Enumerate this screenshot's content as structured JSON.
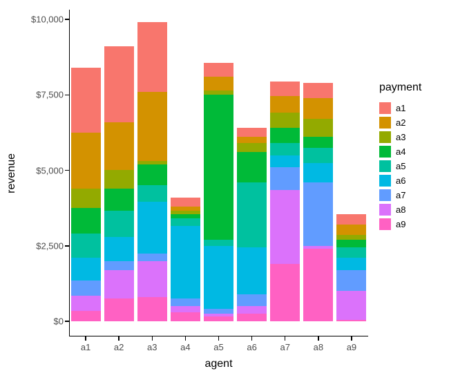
{
  "chart_data": {
    "type": "bar",
    "stacked": true,
    "title": "",
    "xlabel": "agent",
    "ylabel": "revenue",
    "legend_title": "payment",
    "legend_position": "right",
    "grid": false,
    "ylim": [
      0,
      10000
    ],
    "categories": [
      "a1",
      "a2",
      "a3",
      "a4",
      "a5",
      "a6",
      "a7",
      "a8",
      "a9"
    ],
    "y_ticks": [
      "$0",
      "$2,500",
      "$5,000",
      "$7,500",
      "$10,000"
    ],
    "y_tick_values": [
      0,
      2500,
      5000,
      7500,
      10000
    ],
    "bar_totals": [
      8400,
      9100,
      9900,
      4100,
      8550,
      6400,
      7950,
      7900,
      3550
    ],
    "series": [
      {
        "name": "a1",
        "color": "#F8766D",
        "values": [
          2150,
          2500,
          2300,
          300,
          450,
          300,
          500,
          500,
          350
        ]
      },
      {
        "name": "a2",
        "color": "#D39200",
        "values": [
          1850,
          1600,
          2300,
          150,
          450,
          200,
          550,
          700,
          350
        ]
      },
      {
        "name": "a3",
        "color": "#93AA00",
        "values": [
          650,
          600,
          100,
          100,
          150,
          300,
          500,
          600,
          150
        ]
      },
      {
        "name": "a4",
        "color": "#00BA38",
        "values": [
          850,
          750,
          700,
          150,
          4800,
          1000,
          500,
          350,
          250
        ]
      },
      {
        "name": "a5",
        "color": "#00C19F",
        "values": [
          800,
          850,
          550,
          250,
          200,
          2150,
          400,
          500,
          350
        ]
      },
      {
        "name": "a6",
        "color": "#00B9E3",
        "values": [
          750,
          800,
          1700,
          2400,
          2100,
          1550,
          400,
          650,
          400
        ]
      },
      {
        "name": "a7",
        "color": "#619CFF",
        "values": [
          500,
          300,
          250,
          250,
          150,
          400,
          750,
          2100,
          700
        ]
      },
      {
        "name": "a8",
        "color": "#DB72FB",
        "values": [
          500,
          950,
          1200,
          200,
          100,
          250,
          2450,
          100,
          950
        ]
      },
      {
        "name": "a9",
        "color": "#FF61C3",
        "values": [
          350,
          750,
          800,
          300,
          150,
          250,
          1900,
          2400,
          50
        ]
      }
    ]
  }
}
